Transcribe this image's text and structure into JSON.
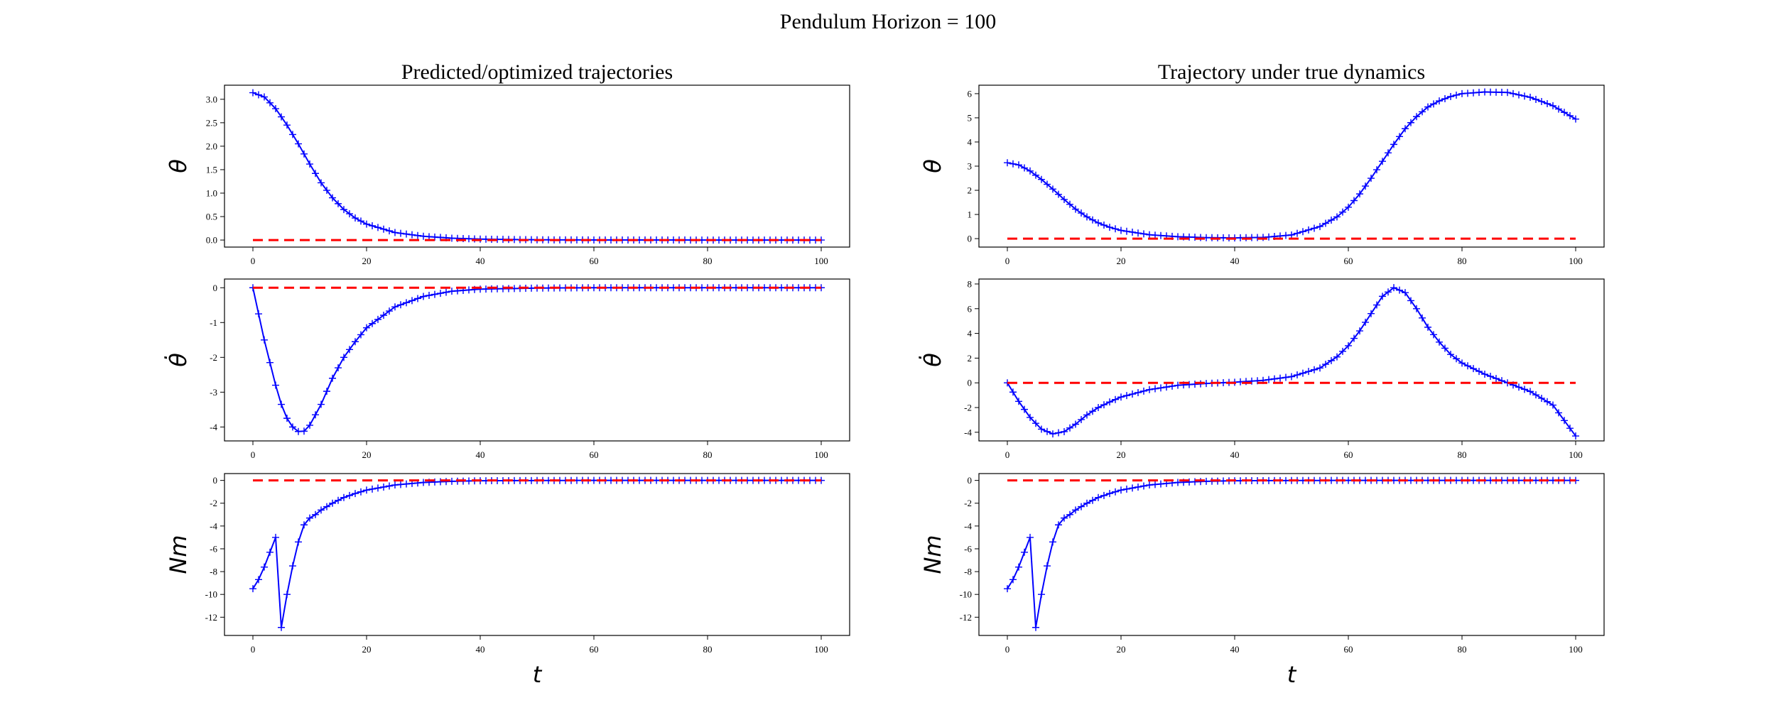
{
  "figure_title": "Pendulum Horizon = 100",
  "colors": {
    "trajectory": "#0000ff",
    "target": "#ff0000"
  },
  "chart_data": [
    {
      "type": "line",
      "column_title": "Predicted/optimized trajectories",
      "ylabel": "θ",
      "xlabel": "",
      "xlim": [
        0,
        100
      ],
      "ylim": [
        -0.15,
        3.3
      ],
      "xticks": [
        "0",
        "20",
        "40",
        "60",
        "80",
        "100"
      ],
      "yticks": [
        "0.0",
        "0.5",
        "1.0",
        "1.5",
        "2.0",
        "2.5",
        "3.0"
      ],
      "grid": false,
      "series": [
        {
          "style": "solid-plus",
          "x": [
            0,
            2,
            4,
            6,
            8,
            10,
            12,
            14,
            16,
            18,
            20,
            25,
            30,
            35,
            40,
            50,
            60,
            70,
            80,
            90,
            100
          ],
          "y": [
            3.14,
            3.05,
            2.8,
            2.45,
            2.05,
            1.62,
            1.22,
            0.9,
            0.65,
            0.47,
            0.34,
            0.16,
            0.08,
            0.04,
            0.02,
            0.005,
            0.002,
            0.001,
            0,
            0,
            0
          ]
        },
        {
          "style": "dashed",
          "x": [
            0,
            100
          ],
          "y": [
            0,
            0
          ]
        }
      ]
    },
    {
      "type": "line",
      "column_title": "",
      "ylabel": "θ̇",
      "xlabel": "",
      "xlim": [
        0,
        100
      ],
      "ylim": [
        -4.4,
        0.25
      ],
      "xticks": [
        "0",
        "20",
        "40",
        "60",
        "80",
        "100"
      ],
      "yticks": [
        "-4",
        "-3",
        "-2",
        "-1",
        "0"
      ],
      "grid": false,
      "series": [
        {
          "style": "solid-plus",
          "x": [
            0,
            1,
            2,
            3,
            4,
            5,
            6,
            7,
            8,
            9,
            10,
            12,
            14,
            16,
            18,
            20,
            25,
            30,
            35,
            40,
            50,
            60,
            80,
            100
          ],
          "y": [
            0,
            -0.75,
            -1.5,
            -2.15,
            -2.8,
            -3.35,
            -3.75,
            -4.0,
            -4.13,
            -4.12,
            -3.95,
            -3.35,
            -2.6,
            -2.0,
            -1.55,
            -1.15,
            -0.55,
            -0.25,
            -0.1,
            -0.04,
            -0.01,
            0,
            0,
            0
          ]
        },
        {
          "style": "dashed",
          "x": [
            0,
            100
          ],
          "y": [
            0,
            0
          ]
        }
      ]
    },
    {
      "type": "line",
      "column_title": "",
      "ylabel": "Nm",
      "xlabel": "t",
      "xlim": [
        0,
        100
      ],
      "ylim": [
        -13.6,
        0.6
      ],
      "xticks": [
        "0",
        "20",
        "40",
        "60",
        "80",
        "100"
      ],
      "yticks": [
        "-12",
        "-10",
        "-8",
        "-6",
        "-4",
        "-2",
        "0"
      ],
      "grid": false,
      "series": [
        {
          "style": "solid-plus",
          "x": [
            0,
            1,
            2,
            3,
            4,
            5,
            6,
            7,
            8,
            9,
            10,
            11,
            12,
            14,
            16,
            18,
            20,
            25,
            30,
            35,
            40,
            50,
            60,
            80,
            100
          ],
          "y": [
            -9.5,
            -8.7,
            -7.6,
            -6.3,
            -5.0,
            -12.9,
            -10.0,
            -7.5,
            -5.4,
            -3.9,
            -3.3,
            -3.0,
            -2.6,
            -2.0,
            -1.5,
            -1.15,
            -0.85,
            -0.4,
            -0.18,
            -0.08,
            -0.03,
            -0.01,
            0,
            0,
            0
          ]
        },
        {
          "style": "dashed",
          "x": [
            0,
            100
          ],
          "y": [
            0,
            0
          ]
        }
      ]
    },
    {
      "type": "line",
      "column_title": "Trajectory under true dynamics",
      "ylabel": "θ",
      "xlabel": "",
      "xlim": [
        0,
        100
      ],
      "ylim": [
        -0.35,
        6.35
      ],
      "xticks": [
        "0",
        "20",
        "40",
        "60",
        "80",
        "100"
      ],
      "yticks": [
        "0",
        "1",
        "2",
        "3",
        "4",
        "5",
        "6"
      ],
      "grid": false,
      "series": [
        {
          "style": "solid-plus",
          "x": [
            0,
            2,
            4,
            6,
            8,
            10,
            12,
            14,
            16,
            18,
            20,
            25,
            30,
            35,
            40,
            45,
            50,
            55,
            58,
            60,
            62,
            64,
            66,
            68,
            70,
            72,
            74,
            76,
            78,
            80,
            84,
            88,
            92,
            96,
            100
          ],
          "y": [
            3.14,
            3.05,
            2.8,
            2.45,
            2.05,
            1.62,
            1.22,
            0.9,
            0.65,
            0.47,
            0.34,
            0.16,
            0.08,
            0.04,
            0.03,
            0.05,
            0.15,
            0.5,
            0.9,
            1.3,
            1.85,
            2.5,
            3.2,
            3.9,
            4.55,
            5.05,
            5.45,
            5.7,
            5.88,
            6.0,
            6.07,
            6.05,
            5.85,
            5.5,
            4.95
          ]
        },
        {
          "style": "dashed",
          "x": [
            0,
            100
          ],
          "y": [
            0,
            0
          ]
        }
      ]
    },
    {
      "type": "line",
      "column_title": "",
      "ylabel": "θ̇",
      "xlabel": "",
      "xlim": [
        0,
        100
      ],
      "ylim": [
        -4.7,
        8.4
      ],
      "xticks": [
        "0",
        "20",
        "40",
        "60",
        "80",
        "100"
      ],
      "yticks": [
        "-4",
        "-2",
        "0",
        "2",
        "4",
        "6",
        "8"
      ],
      "grid": false,
      "series": [
        {
          "style": "solid-plus",
          "x": [
            0,
            2,
            4,
            6,
            8,
            10,
            12,
            14,
            16,
            18,
            20,
            25,
            30,
            35,
            40,
            45,
            50,
            55,
            58,
            60,
            62,
            64,
            66,
            68,
            70,
            72,
            74,
            76,
            78,
            80,
            84,
            88,
            92,
            96,
            100
          ],
          "y": [
            0,
            -1.5,
            -2.8,
            -3.75,
            -4.13,
            -3.95,
            -3.35,
            -2.6,
            -2.0,
            -1.55,
            -1.15,
            -0.55,
            -0.2,
            -0.05,
            0.05,
            0.2,
            0.5,
            1.2,
            2.1,
            3.0,
            4.2,
            5.6,
            7.0,
            7.7,
            7.3,
            6.0,
            4.5,
            3.3,
            2.3,
            1.6,
            0.7,
            0.0,
            -0.7,
            -1.8,
            -4.3
          ]
        },
        {
          "style": "dashed",
          "x": [
            0,
            100
          ],
          "y": [
            0,
            0
          ]
        }
      ]
    },
    {
      "type": "line",
      "column_title": "",
      "ylabel": "Nm",
      "xlabel": "t",
      "xlim": [
        0,
        100
      ],
      "ylim": [
        -13.6,
        0.6
      ],
      "xticks": [
        "0",
        "20",
        "40",
        "60",
        "80",
        "100"
      ],
      "yticks": [
        "-12",
        "-10",
        "-8",
        "-6",
        "-4",
        "-2",
        "0"
      ],
      "grid": false,
      "series": [
        {
          "style": "solid-plus",
          "x": [
            0,
            1,
            2,
            3,
            4,
            5,
            6,
            7,
            8,
            9,
            10,
            11,
            12,
            14,
            16,
            18,
            20,
            25,
            30,
            35,
            40,
            50,
            60,
            80,
            100
          ],
          "y": [
            -9.5,
            -8.7,
            -7.6,
            -6.3,
            -5.0,
            -12.9,
            -10.0,
            -7.5,
            -5.4,
            -3.9,
            -3.3,
            -3.0,
            -2.6,
            -2.0,
            -1.5,
            -1.15,
            -0.85,
            -0.4,
            -0.18,
            -0.08,
            -0.03,
            -0.01,
            0,
            0,
            0
          ]
        },
        {
          "style": "dashed",
          "x": [
            0,
            100
          ],
          "y": [
            0,
            0
          ]
        }
      ]
    }
  ]
}
